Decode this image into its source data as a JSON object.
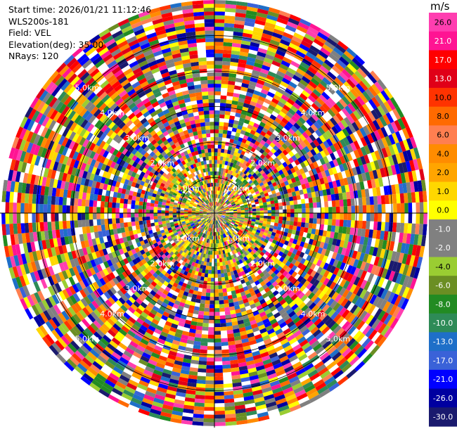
{
  "info": {
    "start_time": "Start time: 2026/01/21 11:12:46",
    "station": "WLS200s-181",
    "field": "Field: VEL",
    "elevation": "Elevation(deg): 35.00",
    "nrays": "NRays: 120"
  },
  "chart_data": {
    "type": "heatmap",
    "projection": "polar PPI",
    "field": "VEL",
    "nrays": 120,
    "elevation_deg": 35.0,
    "range_rings": [
      {
        "label": "1.0km"
      },
      {
        "label": "2.0km"
      },
      {
        "label": "3.0km"
      },
      {
        "label": "4.0km"
      },
      {
        "label": "5.0km"
      }
    ],
    "colorbar": {
      "unit": "m/s",
      "ticks": [
        "26.0",
        "21.0",
        "17.0",
        "13.0",
        "10.0",
        "8.0",
        "6.0",
        "4.0",
        "2.0",
        "1.0",
        "0.0",
        "-1.0",
        "-2.0",
        "-4.0",
        "-6.0",
        "-8.0",
        "-10.0",
        "-13.0",
        "-17.0",
        "-21.0",
        "-26.0",
        "-30.0"
      ],
      "colors": [
        "#ff3eb0",
        "#ff1493",
        "#ff0000",
        "#e00018",
        "#ff3300",
        "#ff6a00",
        "#ff7f50",
        "#ff8c00",
        "#ffa500",
        "#ffd700",
        "#ffff00",
        "#808080",
        "#808080",
        "#9acd32",
        "#6b8e23",
        "#228b22",
        "#2e8b57",
        "#1e6fc8",
        "#3a62d8",
        "#0000ff",
        "#0000a0",
        "#1a1a6e"
      ]
    }
  }
}
